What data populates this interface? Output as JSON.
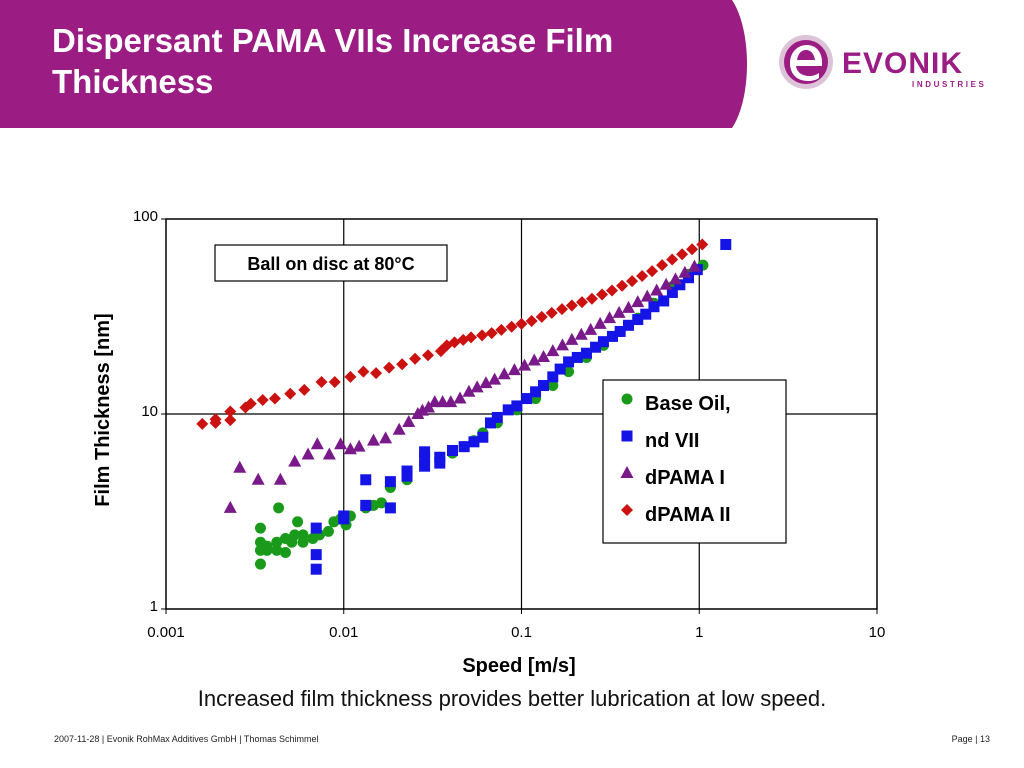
{
  "slide": {
    "title": "Dispersant PAMA VIIs Increase Film Thickness",
    "caption": "Increased film thickness provides better lubrication at low speed.",
    "footer_left": "2007-11-28 | Evonik RohMax Additives GmbH | Thomas Schimmel",
    "footer_right": "Page | 13",
    "brand_color": "#9b1d84"
  },
  "logo": {
    "name": "EVONIK",
    "sub": "INDUSTRIES",
    "icon": "evonik-e-logo"
  },
  "chart_data": {
    "type": "scatter",
    "title": "",
    "xlabel": "Speed [m/s]",
    "ylabel": "Film Thickness [nm]",
    "xscale": "log",
    "yscale": "log",
    "xlim": [
      0.001,
      10
    ],
    "ylim": [
      1,
      100
    ],
    "xticks": [
      "0.001",
      "0.01",
      "0.1",
      "1",
      "10"
    ],
    "yticks": [
      "1",
      "10",
      "100"
    ],
    "grid": true,
    "legend_position": "right",
    "annotation": "Ball on disc at 80°C",
    "series": [
      {
        "name": "Base Oil,",
        "color": "#1a9a1a",
        "marker": "circle",
        "points": [
          [
            0.0034,
            1.7
          ],
          [
            0.0034,
            2.0
          ],
          [
            0.0034,
            2.2
          ],
          [
            0.0034,
            2.6
          ],
          [
            0.0037,
            2.0
          ],
          [
            0.0037,
            2.1
          ],
          [
            0.0042,
            2.0
          ],
          [
            0.0042,
            2.2
          ],
          [
            0.0043,
            3.3
          ],
          [
            0.0047,
            1.95
          ],
          [
            0.0047,
            2.3
          ],
          [
            0.0051,
            2.2
          ],
          [
            0.0053,
            2.4
          ],
          [
            0.0055,
            2.8
          ],
          [
            0.0059,
            2.2
          ],
          [
            0.0059,
            2.4
          ],
          [
            0.0067,
            2.3
          ],
          [
            0.0073,
            2.4
          ],
          [
            0.0082,
            2.5
          ],
          [
            0.0088,
            2.8
          ],
          [
            0.0096,
            2.9
          ],
          [
            0.0103,
            2.7
          ],
          [
            0.0109,
            3.0
          ],
          [
            0.0133,
            3.3
          ],
          [
            0.0147,
            3.4
          ],
          [
            0.0163,
            3.5
          ],
          [
            0.0183,
            4.2
          ],
          [
            0.0227,
            4.6
          ],
          [
            0.0285,
            5.5
          ],
          [
            0.0347,
            6.0
          ],
          [
            0.0409,
            6.3
          ],
          [
            0.0476,
            6.8
          ],
          [
            0.054,
            7.3
          ],
          [
            0.0606,
            8.0
          ],
          [
            0.0731,
            9.0
          ],
          [
            0.0942,
            10.5
          ],
          [
            0.12,
            12.0
          ],
          [
            0.15,
            14.0
          ],
          [
            0.184,
            16.5
          ],
          [
            0.232,
            19.5
          ],
          [
            0.289,
            22.5
          ],
          [
            0.359,
            26.5
          ],
          [
            0.451,
            31.0
          ],
          [
            0.556,
            37.0
          ],
          [
            0.706,
            45.0
          ],
          [
            0.87,
            52.0
          ],
          [
            1.05,
            58.0
          ]
        ]
      },
      {
        "name": "nd VII",
        "color": "#1414e6",
        "marker": "square",
        "points": [
          [
            0.007,
            1.6
          ],
          [
            0.007,
            1.9
          ],
          [
            0.007,
            2.6
          ],
          [
            0.01,
            2.9
          ],
          [
            0.01,
            3.0
          ],
          [
            0.0133,
            3.4
          ],
          [
            0.0133,
            4.6
          ],
          [
            0.0183,
            3.3
          ],
          [
            0.0183,
            4.5
          ],
          [
            0.0227,
            4.8
          ],
          [
            0.0227,
            5.1
          ],
          [
            0.0285,
            5.4
          ],
          [
            0.0285,
            6.0
          ],
          [
            0.0285,
            6.4
          ],
          [
            0.0347,
            5.6
          ],
          [
            0.0347,
            6.0
          ],
          [
            0.0409,
            6.5
          ],
          [
            0.0476,
            6.8
          ],
          [
            0.054,
            7.2
          ],
          [
            0.0606,
            7.6
          ],
          [
            0.0669,
            9.0
          ],
          [
            0.0731,
            9.6
          ],
          [
            0.0842,
            10.5
          ],
          [
            0.0942,
            11.0
          ],
          [
            0.107,
            12.0
          ],
          [
            0.12,
            13.0
          ],
          [
            0.133,
            14.0
          ],
          [
            0.15,
            15.5
          ],
          [
            0.165,
            17.0
          ],
          [
            0.184,
            18.5
          ],
          [
            0.206,
            19.5
          ],
          [
            0.232,
            20.5
          ],
          [
            0.261,
            22.0
          ],
          [
            0.289,
            23.5
          ],
          [
            0.325,
            25.0
          ],
          [
            0.359,
            26.5
          ],
          [
            0.4,
            28.5
          ],
          [
            0.451,
            30.5
          ],
          [
            0.5,
            32.5
          ],
          [
            0.556,
            35.5
          ],
          [
            0.631,
            38.0
          ],
          [
            0.706,
            42.0
          ],
          [
            0.778,
            46.0
          ],
          [
            0.87,
            50.0
          ],
          [
            0.975,
            55.0
          ],
          [
            1.41,
            74.0
          ]
        ]
      },
      {
        "name": "dPAMA I",
        "color": "#7a1a8a",
        "marker": "triangle",
        "points": [
          [
            0.0023,
            3.3
          ],
          [
            0.0026,
            5.3
          ],
          [
            0.0033,
            4.6
          ],
          [
            0.0044,
            4.6
          ],
          [
            0.0053,
            5.7
          ],
          [
            0.0063,
            6.2
          ],
          [
            0.0071,
            7.0
          ],
          [
            0.0083,
            6.2
          ],
          [
            0.0096,
            7.0
          ],
          [
            0.0109,
            6.6
          ],
          [
            0.0122,
            6.8
          ],
          [
            0.0147,
            7.3
          ],
          [
            0.0172,
            7.5
          ],
          [
            0.0205,
            8.3
          ],
          [
            0.0232,
            9.1
          ],
          [
            0.0261,
            10.0
          ],
          [
            0.0277,
            10.4
          ],
          [
            0.03,
            10.8
          ],
          [
            0.0325,
            11.5
          ],
          [
            0.036,
            11.5
          ],
          [
            0.04,
            11.5
          ],
          [
            0.0451,
            12.0
          ],
          [
            0.0506,
            13.0
          ],
          [
            0.0563,
            13.7
          ],
          [
            0.0631,
            14.4
          ],
          [
            0.0706,
            15.0
          ],
          [
            0.08,
            16.0
          ],
          [
            0.0913,
            16.8
          ],
          [
            0.104,
            17.7
          ],
          [
            0.118,
            18.8
          ],
          [
            0.133,
            19.6
          ],
          [
            0.15,
            21.0
          ],
          [
            0.17,
            22.5
          ],
          [
            0.192,
            24.0
          ],
          [
            0.217,
            25.5
          ],
          [
            0.245,
            27.0
          ],
          [
            0.277,
            29.0
          ],
          [
            0.313,
            31.0
          ],
          [
            0.354,
            33.0
          ],
          [
            0.4,
            35.0
          ],
          [
            0.451,
            37.5
          ],
          [
            0.51,
            40.0
          ],
          [
            0.576,
            43.0
          ],
          [
            0.651,
            46.0
          ],
          [
            0.735,
            49.0
          ],
          [
            0.83,
            53.0
          ],
          [
            0.94,
            57.0
          ]
        ]
      },
      {
        "name": "dPAMA II",
        "color": "#cc1111",
        "marker": "diamond",
        "points": [
          [
            0.0016,
            8.9
          ],
          [
            0.0019,
            9.0
          ],
          [
            0.0019,
            9.4
          ],
          [
            0.0023,
            9.3
          ],
          [
            0.0023,
            10.3
          ],
          [
            0.0028,
            10.8
          ],
          [
            0.003,
            11.3
          ],
          [
            0.0035,
            11.8
          ],
          [
            0.0041,
            12.0
          ],
          [
            0.005,
            12.7
          ],
          [
            0.006,
            13.3
          ],
          [
            0.0075,
            14.6
          ],
          [
            0.0089,
            14.6
          ],
          [
            0.0109,
            15.5
          ],
          [
            0.0129,
            16.5
          ],
          [
            0.0152,
            16.2
          ],
          [
            0.018,
            17.3
          ],
          [
            0.0213,
            18.0
          ],
          [
            0.0252,
            19.2
          ],
          [
            0.0298,
            20.0
          ],
          [
            0.0352,
            21.0
          ],
          [
            0.038,
            22.5
          ],
          [
            0.042,
            23.3
          ],
          [
            0.047,
            24.0
          ],
          [
            0.052,
            24.7
          ],
          [
            0.06,
            25.3
          ],
          [
            0.068,
            26.0
          ],
          [
            0.077,
            27.0
          ],
          [
            0.088,
            28.0
          ],
          [
            0.1,
            29.0
          ],
          [
            0.114,
            30.0
          ],
          [
            0.13,
            31.5
          ],
          [
            0.148,
            33.0
          ],
          [
            0.169,
            34.5
          ],
          [
            0.192,
            36.0
          ],
          [
            0.219,
            37.5
          ],
          [
            0.249,
            39.0
          ],
          [
            0.284,
            41.0
          ],
          [
            0.323,
            43.0
          ],
          [
            0.368,
            45.5
          ],
          [
            0.419,
            48.0
          ],
          [
            0.477,
            51.0
          ],
          [
            0.543,
            54.0
          ],
          [
            0.618,
            58.0
          ],
          [
            0.704,
            62.0
          ],
          [
            0.801,
            66.0
          ],
          [
            0.912,
            70.0
          ],
          [
            1.04,
            74.0
          ]
        ]
      }
    ]
  }
}
